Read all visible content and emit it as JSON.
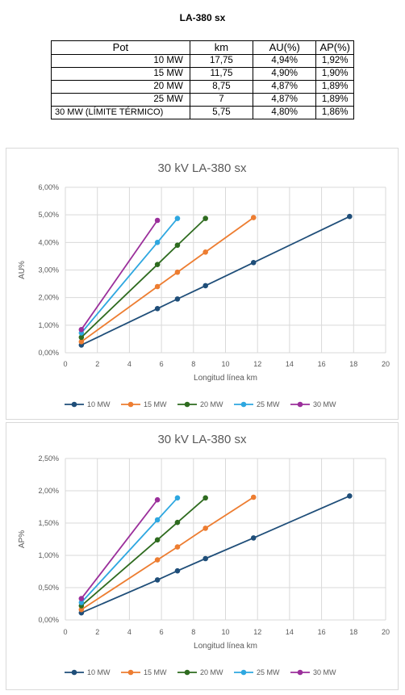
{
  "page_title": "LA-380 sx",
  "table": {
    "headers": [
      "Pot",
      "km",
      "AU(%)",
      "AP(%)"
    ],
    "rows": [
      [
        "10 MW",
        "17,75",
        "4,94%",
        "1,92%"
      ],
      [
        "15 MW",
        "11,75",
        "4,90%",
        "1,90%"
      ],
      [
        "20 MW",
        "8,75",
        "4,87%",
        "1,89%"
      ],
      [
        "25 MW",
        "7",
        "4,87%",
        "1,89%"
      ],
      [
        "30 MW (LÍMITE TÉRMICO)",
        "5,75",
        "4,80%",
        "1,86%"
      ]
    ]
  },
  "colors": {
    "10 MW": "#1f4e79",
    "15 MW": "#ed7d31",
    "20 MW": "#2e6b1f",
    "25 MW": "#2ea7e0",
    "30 MW": "#9b2f9b"
  },
  "chart_data": [
    {
      "type": "line",
      "title": "30 kV LA-380 sx",
      "xlabel": "Longitud línea km",
      "ylabel": "AU%",
      "xlim": [
        0,
        20
      ],
      "ylim": [
        0,
        0.06
      ],
      "xticks": [
        "0",
        "2",
        "4",
        "6",
        "8",
        "10",
        "12",
        "14",
        "16",
        "18",
        "20"
      ],
      "yticks": [
        "0,00%",
        "1,00%",
        "2,00%",
        "3,00%",
        "4,00%",
        "5,00%",
        "6,00%"
      ],
      "grid": true,
      "legend": "bottom",
      "series": [
        {
          "name": "10 MW",
          "x": [
            1,
            5.75,
            7,
            8.75,
            11.75,
            17.75
          ],
          "y": [
            0.0028,
            0.016,
            0.0195,
            0.0243,
            0.0327,
            0.0494
          ]
        },
        {
          "name": "15 MW",
          "x": [
            1,
            5.75,
            7,
            8.75,
            11.75
          ],
          "y": [
            0.004,
            0.024,
            0.0292,
            0.0365,
            0.049
          ]
        },
        {
          "name": "20 MW",
          "x": [
            1,
            5.75,
            7,
            8.75
          ],
          "y": [
            0.0056,
            0.032,
            0.039,
            0.0487
          ]
        },
        {
          "name": "25 MW",
          "x": [
            1,
            5.75,
            7
          ],
          "y": [
            0.0072,
            0.04,
            0.0487
          ]
        },
        {
          "name": "30 MW",
          "x": [
            1,
            5.75
          ],
          "y": [
            0.0084,
            0.048
          ]
        }
      ]
    },
    {
      "type": "line",
      "title": "30 kV LA-380 sx",
      "xlabel": "Longitud línea km",
      "ylabel": "AP%",
      "xlim": [
        0,
        20
      ],
      "ylim": [
        0,
        0.025
      ],
      "xticks": [
        "0",
        "2",
        "4",
        "6",
        "8",
        "10",
        "12",
        "14",
        "16",
        "18",
        "20"
      ],
      "yticks": [
        "0,00%",
        "0,50%",
        "1,00%",
        "1,50%",
        "2,00%",
        "2,50%"
      ],
      "grid": true,
      "legend": "bottom",
      "series": [
        {
          "name": "10 MW",
          "x": [
            1,
            5.75,
            7,
            8.75,
            11.75,
            17.75
          ],
          "y": [
            0.0011,
            0.0062,
            0.0076,
            0.0095,
            0.0127,
            0.0192
          ]
        },
        {
          "name": "15 MW",
          "x": [
            1,
            5.75,
            7,
            8.75,
            11.75
          ],
          "y": [
            0.0016,
            0.0093,
            0.0113,
            0.0142,
            0.019
          ]
        },
        {
          "name": "20 MW",
          "x": [
            1,
            5.75,
            7,
            8.75
          ],
          "y": [
            0.0022,
            0.0124,
            0.0151,
            0.0189
          ]
        },
        {
          "name": "25 MW",
          "x": [
            1,
            5.75,
            7
          ],
          "y": [
            0.0027,
            0.0155,
            0.0189
          ]
        },
        {
          "name": "30 MW",
          "x": [
            1,
            5.75
          ],
          "y": [
            0.0033,
            0.0186
          ]
        }
      ]
    }
  ]
}
